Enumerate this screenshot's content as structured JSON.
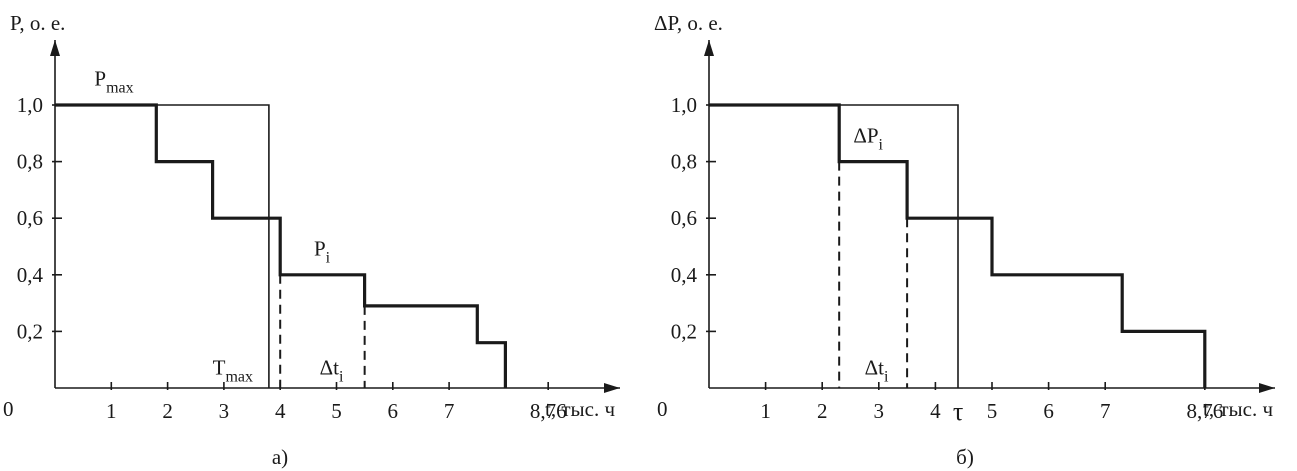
{
  "chart_data": [
    {
      "id": "a",
      "type": "line",
      "caption": "а)",
      "ylabel": "P, о. е.",
      "xlabel": "t, тыс. ч",
      "origin_label": "0",
      "x_ticks": [
        "1",
        "2",
        "3",
        "4",
        "5",
        "6",
        "7",
        "8,76"
      ],
      "x_tick_values": [
        1,
        2,
        3,
        4,
        5,
        6,
        7,
        8.76
      ],
      "y_ticks": [
        "0,2",
        "0,4",
        "0,6",
        "0,8",
        "1,0"
      ],
      "y_tick_values": [
        0.2,
        0.4,
        0.6,
        0.8,
        1.0
      ],
      "xlim": [
        0,
        9.9
      ],
      "ylim": [
        0,
        1.24
      ],
      "series": [
        {
          "name": "P_max",
          "style": "thin",
          "points": [
            [
              0,
              1.0
            ],
            [
              3.8,
              1.0
            ],
            [
              3.8,
              0
            ]
          ]
        },
        {
          "name": "P_i",
          "style": "thick",
          "points": [
            [
              0,
              1.0
            ],
            [
              1.8,
              1.0
            ],
            [
              1.8,
              0.8
            ],
            [
              2.8,
              0.8
            ],
            [
              2.8,
              0.6
            ],
            [
              4.0,
              0.6
            ],
            [
              4.0,
              0.4
            ],
            [
              5.5,
              0.4
            ],
            [
              5.5,
              0.29
            ],
            [
              7.5,
              0.29
            ],
            [
              7.5,
              0.16
            ],
            [
              8.0,
              0.16
            ],
            [
              8.0,
              0
            ]
          ]
        }
      ],
      "dashed": [
        {
          "points": [
            [
              4.0,
              0.4
            ],
            [
              4.0,
              0
            ]
          ]
        },
        {
          "points": [
            [
              5.5,
              0.29
            ],
            [
              5.5,
              0
            ]
          ]
        }
      ],
      "annotations": [
        {
          "main": "P",
          "sub": "max",
          "x": 0.7,
          "y": 1.04
        },
        {
          "main": "P",
          "sub": "i",
          "x": 4.6,
          "y": 0.44
        },
        {
          "main": "T",
          "sub": "max",
          "x": 2.8,
          "y": 0.02
        },
        {
          "main": "Δt",
          "sub": "i",
          "x": 4.7,
          "y": 0.02
        }
      ]
    },
    {
      "id": "b",
      "type": "line",
      "caption": "б)",
      "ylabel": "ΔP, о. е.",
      "xlabel": "t, тыс. ч",
      "origin_label": "0",
      "x_ticks": [
        "1",
        "2",
        "3",
        "4",
        "5",
        "6",
        "7",
        "8,76"
      ],
      "x_tick_values": [
        1,
        2,
        3,
        4,
        5,
        6,
        7,
        8.76
      ],
      "extra_x_label": {
        "text": "τ",
        "value": 4.4
      },
      "y_ticks": [
        "0,2",
        "0,4",
        "0,6",
        "0,8",
        "1,0"
      ],
      "y_tick_values": [
        0.2,
        0.4,
        0.6,
        0.8,
        1.0
      ],
      "xlim": [
        0,
        10.1
      ],
      "ylim": [
        0,
        1.24
      ],
      "series": [
        {
          "name": "τ",
          "style": "thin",
          "points": [
            [
              0,
              1.0
            ],
            [
              4.4,
              1.0
            ],
            [
              4.4,
              0
            ]
          ]
        },
        {
          "name": "ΔP_i",
          "style": "thick",
          "points": [
            [
              0,
              1.0
            ],
            [
              2.3,
              1.0
            ],
            [
              2.3,
              0.8
            ],
            [
              3.5,
              0.8
            ],
            [
              3.5,
              0.6
            ],
            [
              5.0,
              0.6
            ],
            [
              5.0,
              0.4
            ],
            [
              7.3,
              0.4
            ],
            [
              7.3,
              0.2
            ],
            [
              8.76,
              0.2
            ],
            [
              8.76,
              0
            ]
          ]
        }
      ],
      "dashed": [
        {
          "points": [
            [
              2.3,
              0.8
            ],
            [
              2.3,
              0
            ]
          ]
        },
        {
          "points": [
            [
              3.5,
              0.6
            ],
            [
              3.5,
              0
            ]
          ]
        }
      ],
      "annotations": [
        {
          "main": "ΔP",
          "sub": "i",
          "x": 2.55,
          "y": 0.84
        },
        {
          "main": "Δt",
          "sub": "i",
          "x": 2.75,
          "y": 0.02
        }
      ]
    }
  ]
}
